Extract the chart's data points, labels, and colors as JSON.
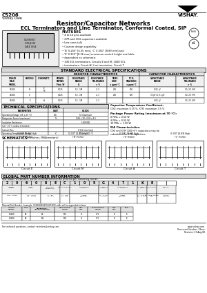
{
  "title_main": "Resistor/Capacitor Networks",
  "title_sub": "ECL Terminators and Line Terminator, Conformal Coated, SIP",
  "header_left": "CS206",
  "header_sub": "Vishay Dale",
  "features_title": "FEATURES",
  "features": [
    "4 to 16 pins available",
    "X7R and C0G capacitors available",
    "Low cross talk",
    "Custom design capability",
    "'B' 0.250\" [6.35 mm], 'C' 0.350\" [8.89 mm] and",
    "'E' 0.325\" [8.26 mm] maximum seated height available,",
    "dependent on schematic",
    "10K ECL terminators, Circuits E and M; 100K ECL",
    "terminators, Circuit A; Line terminator, Circuit T"
  ],
  "std_elec_title": "STANDARD ELECTRICAL SPECIFICATIONS",
  "resistor_char_title": "RESISTOR CHARACTERISTICS",
  "capacitor_char_title": "CAPACITOR CHARACTERISTICS",
  "col_headers": [
    "VISHAY\nDALE\nMODEL",
    "PROFILE",
    "SCHEMATIC",
    "POWER\nRATING\nPtot, W",
    "RESISTANCE\nRANGE\nΩ",
    "RESISTANCE\nTOLERANCE\n± %",
    "TEMP.\nCOEF.\n± ppm/°C",
    "T.C.R.\nTRACKING\n± ppm/°C",
    "CAPACITANCE\nRANGE",
    "CAPACITANCE\nTOLERANCE\n± %"
  ],
  "table_rows": [
    [
      "CS206",
      "B",
      "E\nM",
      "0.125",
      "10 - 1M",
      "2, 5",
      "200",
      "100",
      "0.01 µF",
      "10, 20, (M)"
    ],
    [
      "CS206",
      "C",
      "",
      "0.125",
      "10 - 1M",
      "2, 5",
      "200",
      "100",
      "33 pF to 0.1 µF",
      "10, 20, (M)"
    ],
    [
      "CS206",
      "E",
      "A",
      "0.125",
      "10 - 1M",
      "2, 5",
      "",
      "",
      "0.01 µF",
      "10, 20, (M)"
    ]
  ],
  "tech_title": "TECHNICAL SPECIFICATIONS",
  "tech_col_headers": [
    "PARAMETER",
    "UNIT",
    "CS206"
  ],
  "tech_rows": [
    [
      "Operating Voltage (25 ± 25 °C)",
      "Vdc",
      "50 maximum"
    ],
    [
      "Dissipation Factor (maximum)",
      "%",
      "0.04 x 10³, 0.05 x 2.5"
    ],
    [
      "Insulation Resistance",
      "",
      "1000 MΩ"
    ],
    [
      "(at + 25 °C unless otherwise)",
      "",
      ""
    ],
    [
      "Contact Res.",
      "",
      "0.1 Ω max (avg)"
    ],
    [
      "Operating Temperature Range",
      "°C",
      "-55 to + 125 °C"
    ]
  ],
  "cap_temp_title": "Capacitor Temperature Coefficient:",
  "cap_temp_text": "C0G: maximum 0.15 %, X7R: maximum 3.5 %",
  "pkg_pwr_title": "Package Power Rating (maximum at 70 °C):",
  "pkg_pwr_lines": [
    "8 PINs = 0.50 W",
    "9 PINs = 0.50 W",
    "10 PINs = 1.00 W"
  ],
  "eia_title": "EIA Characteristics:",
  "eia_lines": [
    "C0G and X7R (100 nF): capacitors may be",
    "substituted for X7R capacitors"
  ],
  "schematics_title": "SCHEMATICS",
  "schematics_sub": " in Inches (Millimeters)",
  "circuit_names": [
    "Circuit E",
    "Circuit M",
    "Circuit A",
    "Circuit T"
  ],
  "circuit_heights": [
    "0.250\" [6.35] High\n('B' Profile)",
    "0.250\" [6.35] High\n('B' Profile)",
    "0.325\" [8.26] High\n('E' Profile)",
    "0.350\" [8.89] High\n('C' Profile)"
  ],
  "global_pn_title": "GLOBAL PART NUMBER INFORMATION",
  "pn_example_text": "New Global Part Numbers (partial CS20608ES105G471KE preferred part numbering format):",
  "pn_chars": [
    "2",
    "0",
    "6",
    "0",
    "8",
    "E",
    "C",
    "1",
    "0",
    "5",
    "G",
    "4",
    "7",
    "1",
    "K",
    "E",
    " ",
    " "
  ],
  "pn_col_labels": [
    "GLOBAL\nMODEL",
    "PIN\nCOUNT",
    "PACKAGE/\nSCHEMATIC",
    "CHARACTERISTIC",
    "RESISTANCE\nVALUE",
    "RES.\nTOLERANCE",
    "CAPACITANCE\nVALUE",
    "CAP.\nTOLERANCE",
    "PACKAGING",
    "SPECIAL"
  ],
  "pn_col_desc": [
    "206 = CS206",
    "04 = 4 Pins\n08 = 8 Pins",
    "E = ES\nM = MS",
    "C = C0G\nX = X7R",
    "3 digit\nsignificant",
    "G = ± 2 %\nJ = ± 5 %",
    "3 digit\nsignificant",
    "K = ± 10 %\nM = ± 20 %",
    "E = Lead (Tinless)\nBulk",
    "Blank =\nStandard"
  ],
  "mpn_title": "Material Part Number (example: CS20608ES105G471KE) suffix will be appended to form:",
  "mpn_rows": [
    [
      "CS206",
      "08",
      "ES",
      "105",
      "G",
      "471",
      "K",
      "E"
    ],
    [
      "CS206",
      "08",
      "MS",
      "100",
      "G",
      "471",
      "K",
      "E"
    ]
  ],
  "mpn_col_headers": [
    "GLOBAL\nMODEL",
    "PINS",
    "SCHEMATIC/\nCHARACTERISTIC",
    "RESISTANCE\nVALUE",
    "RES.\nTOL.",
    "CAPACITANCE\nVALUE",
    "CAP.\nTOL.",
    "PKG"
  ],
  "footer_left": "For technical questions, contact: resistors@vishay.com",
  "footer_right1": "www.vishay.com",
  "footer_right2": "Document Number: 29xxx",
  "footer_right3": "Revision: 27-Aug-08"
}
